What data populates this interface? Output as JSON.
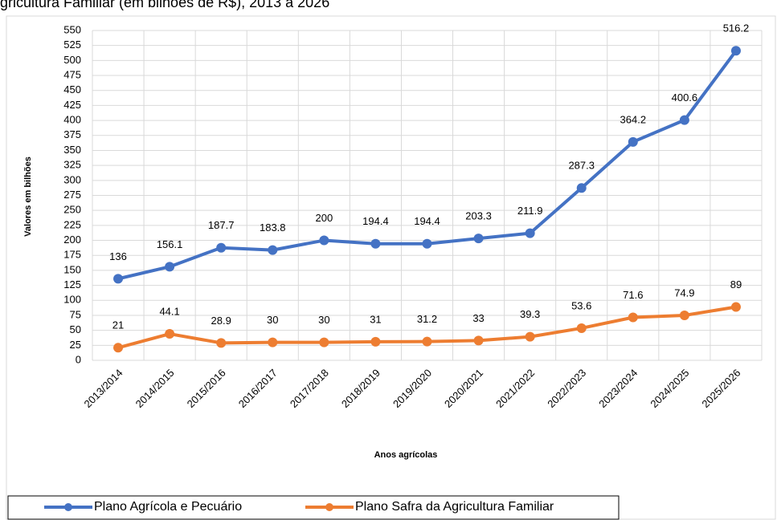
{
  "chart_data": {
    "type": "line",
    "title": "gricultura Familiar (em bilhões de R$), 2013 a 2026",
    "x_label": "Anos agrícolas",
    "y_label": "Valores em bilhões",
    "categories": [
      "2013/2014",
      "2014/2015",
      "2015/2016",
      "2016/2017",
      "2017/2018",
      "2018/2019",
      "2019/2020",
      "2020/2021",
      "2021/2022",
      "2022/2023",
      "2023/2024",
      "2024/2025",
      "2025/2026"
    ],
    "series": [
      {
        "name": "Plano Agrícola e Pecuário",
        "color": "#4472c4",
        "values": [
          136,
          156.1,
          187.7,
          183.8,
          200,
          194.4,
          194.4,
          203.3,
          211.9,
          287.3,
          364.2,
          400.6,
          516.2
        ]
      },
      {
        "name": "Plano Safra da Agricultura Familiar",
        "color": "#ed7d31",
        "values": [
          21,
          44.1,
          28.9,
          30,
          30,
          31,
          31.2,
          33,
          39.3,
          53.6,
          71.6,
          74.9,
          89
        ]
      }
    ],
    "ylim": [
      0,
      550
    ],
    "yticks": [
      0,
      25,
      50,
      75,
      100,
      125,
      150,
      175,
      200,
      225,
      250,
      275,
      300,
      325,
      350,
      375,
      400,
      425,
      450,
      475,
      500,
      525,
      550
    ],
    "grid": true,
    "legend": "bottom"
  }
}
